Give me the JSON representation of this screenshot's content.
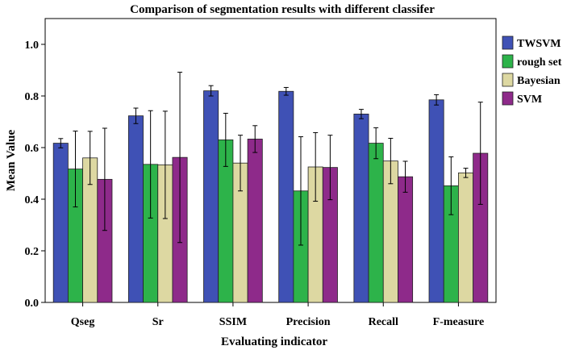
{
  "chart_data": {
    "type": "bar",
    "title": "Comparison of segmentation results with different classifer",
    "xlabel": "Evaluating indicator",
    "ylabel": "Mean Value",
    "ylim": [
      0,
      1.1
    ],
    "yticks": [
      "0.0",
      "0.2",
      "0.4",
      "0.6",
      "0.8",
      "1.0"
    ],
    "grid": false,
    "legend_position": "right",
    "error_bars": true,
    "categories": [
      "Qseg",
      "Sr",
      "SSIM",
      "Precision",
      "Recall",
      "F-measure"
    ],
    "series": [
      {
        "name": "TWSVM",
        "color": "#3f51b5",
        "values": [
          0.617,
          0.723,
          0.82,
          0.818,
          0.73,
          0.785
        ],
        "error": [
          0.018,
          0.03,
          0.02,
          0.015,
          0.018,
          0.02
        ]
      },
      {
        "name": "rough set",
        "color": "#2db34a",
        "values": [
          0.517,
          0.535,
          0.63,
          0.432,
          0.617,
          0.452
        ],
        "error": [
          0.147,
          0.208,
          0.103,
          0.21,
          0.06,
          0.112
        ]
      },
      {
        "name": "Bayesian",
        "color": "#ddd8a2",
        "values": [
          0.56,
          0.533,
          0.54,
          0.525,
          0.548,
          0.502
        ],
        "error": [
          0.103,
          0.208,
          0.108,
          0.133,
          0.088,
          0.018
        ]
      },
      {
        "name": "SVM",
        "color": "#8e2a8a",
        "values": [
          0.477,
          0.562,
          0.633,
          0.523,
          0.487,
          0.578
        ],
        "error": [
          0.198,
          0.33,
          0.052,
          0.125,
          0.06,
          0.198
        ]
      }
    ]
  }
}
